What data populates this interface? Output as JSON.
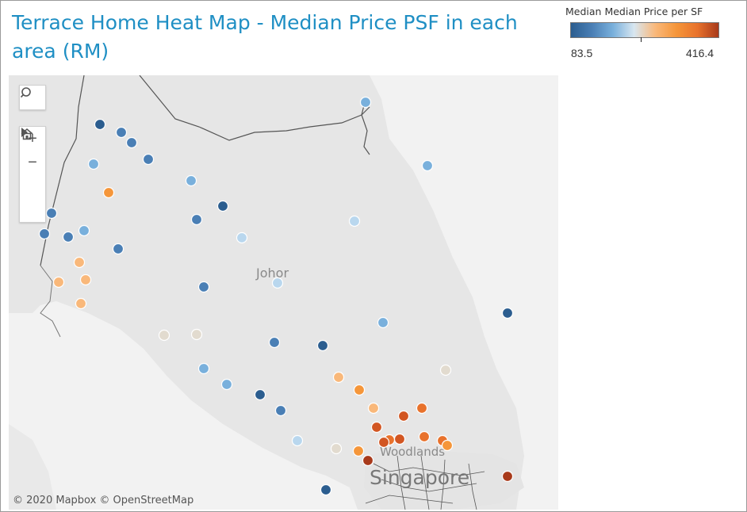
{
  "title": "Terrace Home Heat Map - Median Price PSF in each area (RM)",
  "legend": {
    "title": "Median Median Price per SF",
    "min_label": "83.5",
    "max_label": "416.4",
    "min_value": 83.5,
    "max_value": 416.4
  },
  "map": {
    "labels": {
      "johor": "Johor",
      "woodlands": "Woodlands",
      "singapore": "Singapore"
    },
    "attribution": "© 2020 Mapbox © OpenStreetMap",
    "controls": {
      "search_icon": "search-icon",
      "zoom_in_icon": "plus-icon",
      "zoom_out_icon": "minus-icon",
      "home_icon": "home-icon",
      "expand_icon": "play-icon"
    }
  },
  "chart_data": {
    "type": "scatter",
    "colors": [
      "#2b5d8f",
      "#4a7fb5",
      "#79b0dc",
      "#b9d7ee",
      "#e2dbcf",
      "#f9b87a",
      "#f5963a",
      "#e8722c",
      "#d25622",
      "#a83a1b"
    ],
    "color_scale": {
      "min": 83.5,
      "max": 416.4
    }
  }
}
